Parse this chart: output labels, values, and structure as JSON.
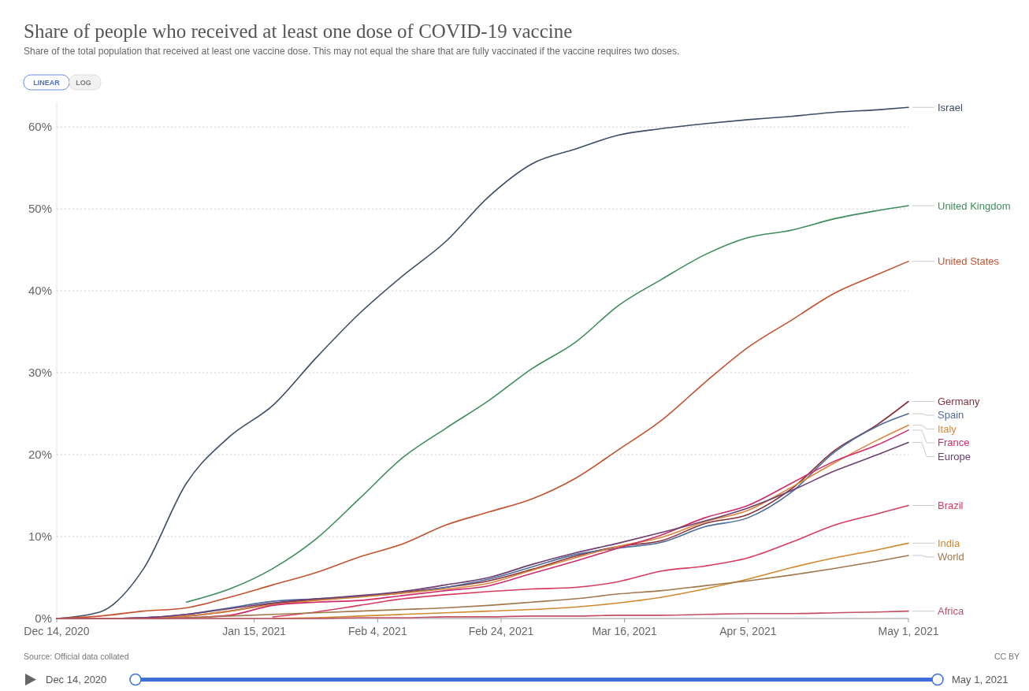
{
  "chart_data": {
    "type": "line",
    "title": "Share of people who received at least one dose of COVID-19 vaccine",
    "subtitle": "Share of the total population that received at least one vaccine dose. This may not equal the share that are fully vaccinated if the vaccine requires two doses.",
    "x": [
      "2020-12-14",
      "2020-12-21",
      "2020-12-28",
      "2021-01-04",
      "2021-01-11",
      "2021-01-18",
      "2021-01-25",
      "2021-02-01",
      "2021-02-08",
      "2021-02-15",
      "2021-02-22",
      "2021-03-01",
      "2021-03-08",
      "2021-03-15",
      "2021-03-22",
      "2021-03-29",
      "2021-04-05",
      "2021-04-12",
      "2021-04-19",
      "2021-04-26",
      "2021-05-01"
    ],
    "series": [
      {
        "name": "Israel",
        "color": "#3c4e66",
        "values": [
          0,
          0.8,
          6,
          16.5,
          22.2,
          26,
          31.8,
          37.2,
          41.8,
          46,
          51.5,
          55.5,
          57.3,
          59,
          59.8,
          60.4,
          60.9,
          61.3,
          61.8,
          62.1,
          62.4
        ]
      },
      {
        "name": "United Kingdom",
        "color": "#3b8e5a",
        "values": [
          null,
          null,
          null,
          2,
          3.6,
          6.1,
          9.7,
          14.6,
          19.6,
          23.2,
          26.6,
          30.5,
          33.7,
          38.2,
          41.4,
          44.4,
          46.5,
          47.4,
          48.8,
          49.8,
          50.4
        ]
      },
      {
        "name": "United States",
        "color": "#c4522f",
        "values": [
          0,
          0.3,
          0.9,
          1.3,
          2.6,
          4.1,
          5.6,
          7.5,
          9.1,
          11.4,
          13,
          14.6,
          17.1,
          20.6,
          24.2,
          28.8,
          33.1,
          36.4,
          39.7,
          42,
          43.6
        ]
      },
      {
        "name": "Germany",
        "color": "#883039",
        "values": [
          0,
          0,
          0.1,
          0.3,
          0.9,
          1.8,
          2.3,
          2.7,
          3.2,
          3.8,
          4.6,
          6,
          7.6,
          8.8,
          9.5,
          11.6,
          12.7,
          15.8,
          20.5,
          23.7,
          26.5
        ]
      },
      {
        "name": "Spain",
        "color": "#4c6a9c",
        "values": [
          0,
          0,
          0.1,
          0.5,
          1.3,
          2.1,
          2.4,
          2.7,
          3.1,
          3.8,
          4.8,
          6.3,
          7.8,
          8.6,
          9.3,
          11.2,
          12.3,
          15.4,
          20.3,
          23.5,
          25
        ]
      },
      {
        "name": "Italy",
        "color": "#d8873a",
        "values": [
          0,
          0,
          0,
          0.3,
          0.9,
          1.7,
          2.2,
          2.6,
          3.1,
          3.6,
          4.3,
          5.9,
          7.4,
          8.8,
          9.9,
          11.8,
          13.2,
          16,
          19,
          21.8,
          23.6
        ]
      },
      {
        "name": "France",
        "color": "#cf2a6a",
        "values": [
          0,
          0,
          0,
          0.1,
          0.4,
          1.6,
          2,
          2.2,
          2.8,
          3.4,
          4,
          5.5,
          7,
          8.6,
          10.2,
          12.3,
          13.8,
          16.5,
          19.2,
          21.2,
          23
        ]
      },
      {
        "name": "Europe",
        "color": "#6d3e71",
        "values": [
          0,
          0,
          0.1,
          0.5,
          1.2,
          1.9,
          2.4,
          2.8,
          3.3,
          4.1,
          5,
          6.6,
          8,
          9.2,
          10.5,
          11.9,
          13.5,
          15.6,
          18,
          20,
          21.5
        ]
      },
      {
        "name": "Brazil",
        "color": "#d73c60",
        "values": [
          null,
          null,
          null,
          null,
          null,
          0.2,
          0.8,
          1.6,
          2.4,
          2.9,
          3.3,
          3.6,
          3.8,
          4.5,
          5.8,
          6.4,
          7.4,
          9.3,
          11.4,
          12.8,
          13.8
        ]
      },
      {
        "name": "India",
        "color": "#d08a2e",
        "values": [
          null,
          null,
          null,
          null,
          null,
          0,
          0.1,
          0.3,
          0.5,
          0.7,
          0.9,
          1.1,
          1.4,
          1.9,
          2.6,
          3.6,
          4.8,
          6.2,
          7.4,
          8.4,
          9.2
        ]
      },
      {
        "name": "World",
        "color": "#a2774c",
        "values": [
          0,
          0,
          0,
          0.1,
          0.3,
          0.5,
          0.7,
          0.9,
          1.1,
          1.3,
          1.6,
          2,
          2.4,
          3,
          3.4,
          4,
          4.6,
          5.3,
          6.1,
          7,
          7.7
        ]
      },
      {
        "name": "Africa",
        "color": "#c15065",
        "values": [
          0,
          0,
          0,
          0,
          0,
          0,
          0,
          0.1,
          0.1,
          0.2,
          0.2,
          0.3,
          0.3,
          0.4,
          0.4,
          0.5,
          0.6,
          0.6,
          0.7,
          0.8,
          0.9
        ]
      }
    ],
    "xlim": [
      "2020-12-14",
      "2021-05-01"
    ],
    "xticks": [
      {
        "value": "2020-12-14",
        "label": "Dec 14, 2020"
      },
      {
        "value": "2021-01-15",
        "label": "Jan 15, 2021"
      },
      {
        "value": "2021-02-04",
        "label": "Feb 4, 2021"
      },
      {
        "value": "2021-02-24",
        "label": "Feb 24, 2021"
      },
      {
        "value": "2021-03-16",
        "label": "Mar 16, 2021"
      },
      {
        "value": "2021-04-05",
        "label": "Apr 5, 2021"
      },
      {
        "value": "2021-05-01",
        "label": "May 1, 2021"
      }
    ],
    "ylim": [
      0,
      63
    ],
    "yticks": [
      {
        "value": 0,
        "label": "0%"
      },
      {
        "value": 10,
        "label": "10%"
      },
      {
        "value": 20,
        "label": "20%"
      },
      {
        "value": 30,
        "label": "30%"
      },
      {
        "value": 40,
        "label": "40%"
      },
      {
        "value": 50,
        "label": "50%"
      },
      {
        "value": 60,
        "label": "60%"
      }
    ],
    "grid": "y",
    "marker": "none",
    "line_style": "solid",
    "annotations": [
      "LINEAR",
      "LOG",
      "Source: Official data collated",
      "CC BY",
      "Dec 14, 2020",
      "May 1, 2021"
    ]
  }
}
